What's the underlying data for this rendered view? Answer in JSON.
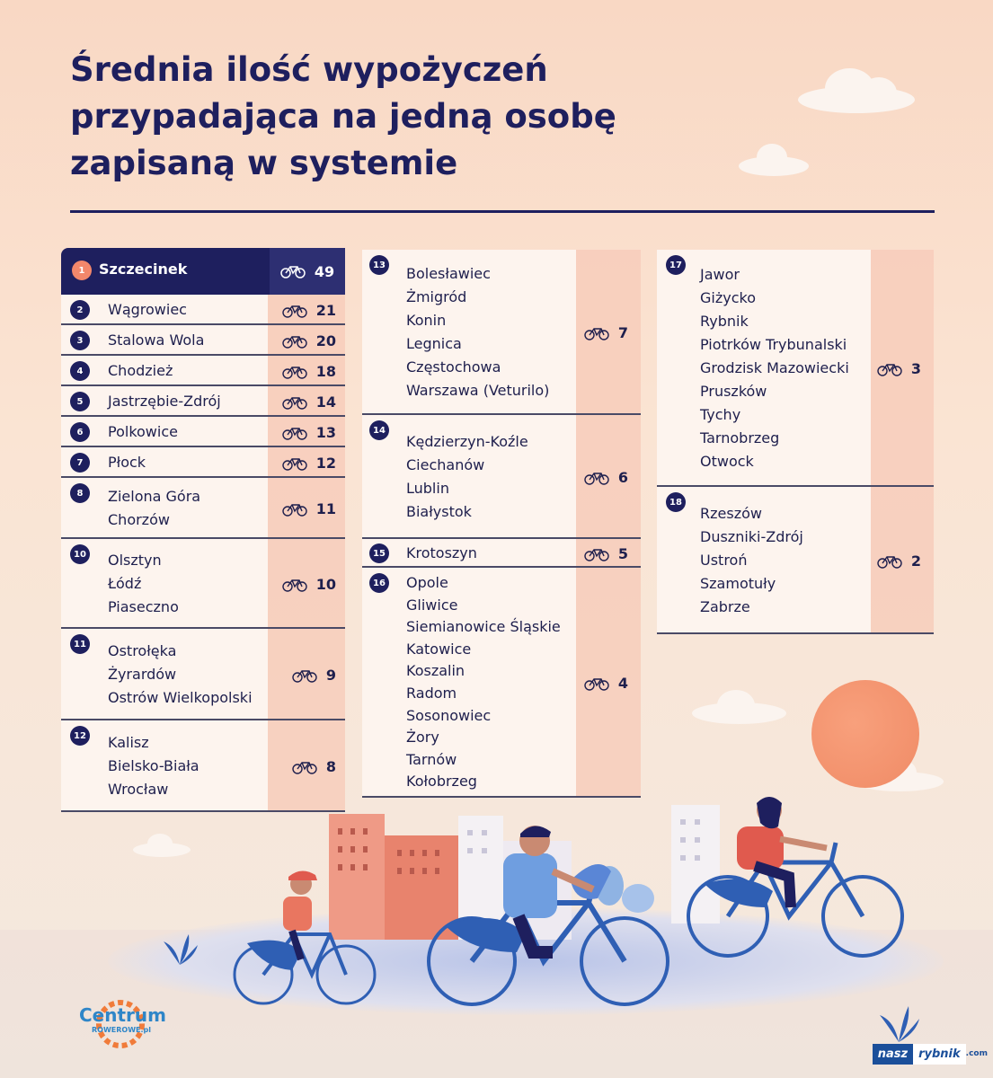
{
  "title": {
    "line1": "Średnia ilość wypożyczeń",
    "line2": "przypadająca na jedną osobę",
    "line3": "zapisaną w systemie"
  },
  "top": {
    "rank": "1",
    "city": "Szczecinek",
    "value": "49"
  },
  "ranking": [
    {
      "rank": "2",
      "cities": [
        "Wągrowiec"
      ],
      "value": "21"
    },
    {
      "rank": "3",
      "cities": [
        "Stalowa Wola"
      ],
      "value": "20"
    },
    {
      "rank": "4",
      "cities": [
        "Chodzież"
      ],
      "value": "18"
    },
    {
      "rank": "5",
      "cities": [
        "Jastrzębie-Zdrój"
      ],
      "value": "14"
    },
    {
      "rank": "6",
      "cities": [
        "Polkowice"
      ],
      "value": "13"
    },
    {
      "rank": "7",
      "cities": [
        "Płock"
      ],
      "value": "12"
    },
    {
      "rank": "8",
      "cities": [
        "Zielona Góra",
        "Chorzów"
      ],
      "value": "11"
    },
    {
      "rank": "10",
      "cities": [
        "Olsztyn",
        "Łódź",
        "Piaseczno"
      ],
      "value": "10"
    },
    {
      "rank": "11",
      "cities": [
        "Ostrołęka",
        "Żyrardów",
        "Ostrów Wielkopolski"
      ],
      "value": "9"
    },
    {
      "rank": "12",
      "cities": [
        "Kalisz",
        "Bielsko-Biała",
        "Wrocław"
      ],
      "value": "8"
    },
    {
      "rank": "13",
      "cities": [
        "Bolesławiec",
        "Żmigród",
        "Konin",
        "Legnica",
        "Częstochowa",
        "Warszawa (Veturilo)"
      ],
      "value": "7"
    },
    {
      "rank": "14",
      "cities": [
        "Kędzierzyn-Koźle",
        "Ciechanów",
        "Lublin",
        "Białystok"
      ],
      "value": "6"
    },
    {
      "rank": "15",
      "cities": [
        "Krotoszyn"
      ],
      "value": "5"
    },
    {
      "rank": "16",
      "cities": [
        "Opole",
        "Gliwice",
        "Siemianowice Śląskie",
        "Katowice",
        "Koszalin",
        "Radom",
        "Sosonowiec",
        "Żory",
        "Tarnów",
        "Kołobrzeg"
      ],
      "value": "4"
    },
    {
      "rank": "17",
      "cities": [
        "Jawor",
        "Giżycko",
        "Rybnik",
        "Piotrków Trybunalski",
        "Grodzisk Mazowiecki",
        "Pruszków",
        "Tychy",
        "Tarnobrzeg",
        "Otwock"
      ],
      "value": "3"
    },
    {
      "rank": "18",
      "cities": [
        "Rzeszów",
        "Duszniki-Zdrój",
        "Ustroń",
        "Szamotuły",
        "Zabrze"
      ],
      "value": "2"
    }
  ],
  "logo": {
    "line1": "Centrum",
    "line2": "ROWEROWE.pl"
  },
  "watermark": {
    "part1": "nasz",
    "part2": "rybnik",
    "suffix": ".com"
  },
  "colors": {
    "navy": "#1e1f5e",
    "accent": "#f2876b",
    "bike": "#2f5fb4"
  },
  "icons": {
    "value_icon": "bicycle-icon"
  }
}
